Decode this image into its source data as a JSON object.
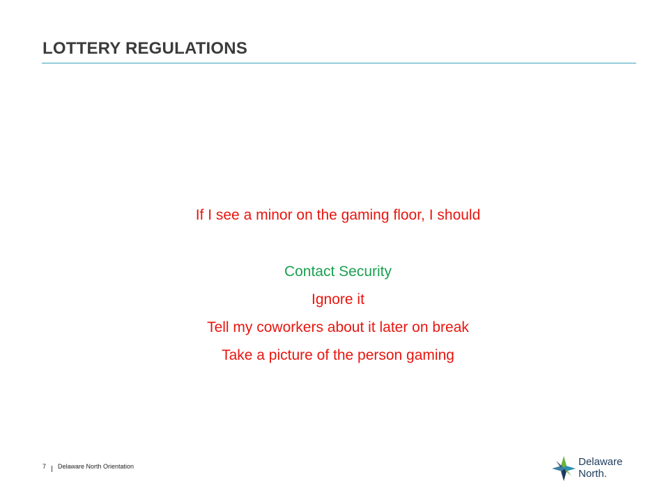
{
  "slide": {
    "title": "LOTTERY REGULATIONS",
    "question": "If I see a minor on the gaming floor, I should",
    "options": [
      {
        "label": "Contact Security",
        "correct": true
      },
      {
        "label": "Ignore it",
        "correct": false
      },
      {
        "label": "Tell my coworkers about it later on break",
        "correct": false
      },
      {
        "label": "Take a picture of the person gaming",
        "correct": false
      }
    ]
  },
  "footer": {
    "page_number": "7",
    "text": "Delaware North Orientation"
  },
  "logo": {
    "line1": "Delaware",
    "line2": "North."
  },
  "colors": {
    "accent_rule": "#3a9fb8",
    "question": "#e8150e",
    "correct": "#1aa050",
    "incorrect": "#e8150e",
    "logo_navy": "#1d3a5c",
    "logo_green": "#6cb33f",
    "logo_teal": "#2b8fb3"
  }
}
